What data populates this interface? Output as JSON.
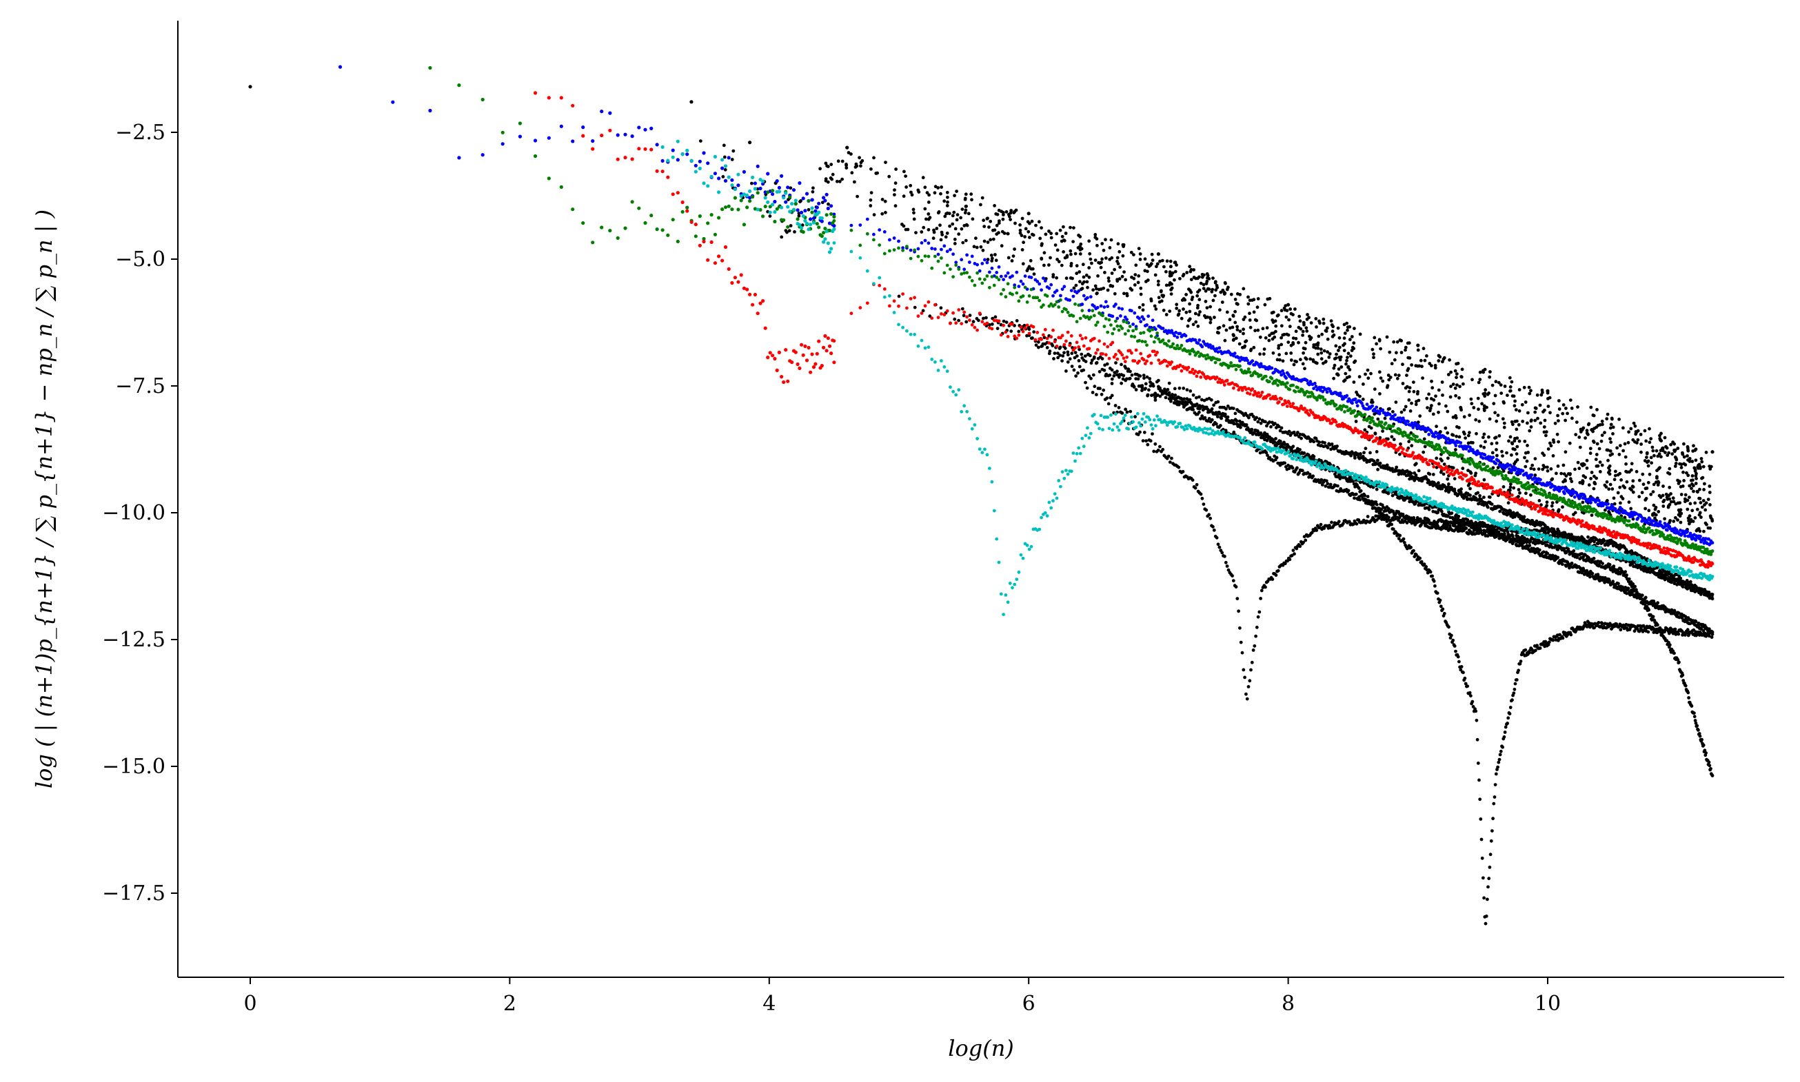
{
  "chart_data": {
    "type": "scatter",
    "title": "",
    "xlabel": "log(n)",
    "ylabel": "log ( | (n+1)p_{n+1} / ∑ p_{n+1} − np_n / ∑ p_n | )",
    "xlim": [
      -0.56,
      11.84
    ],
    "ylim": [
      -18.6,
      -0.05
    ],
    "xticks": [
      0,
      2,
      4,
      6,
      8,
      10
    ],
    "xtick_labels": [
      "0",
      "2",
      "4",
      "6",
      "8",
      "10"
    ],
    "yticks": [
      -2.5,
      -5.0,
      -7.5,
      -10.0,
      -12.5,
      -15.0,
      -17.5
    ],
    "ytick_labels": [
      "−2.5",
      "−5.0",
      "−7.5",
      "−10.0",
      "−12.5",
      "−15.0",
      "−17.5"
    ],
    "grid": false,
    "legend": "none",
    "colors": {
      "blue": "#0000ff",
      "green": "#007f00",
      "red": "#ff0000",
      "cyan": "#00bfbf",
      "black": "#000000"
    },
    "series": [
      {
        "color": "blue",
        "kind": "linear-decay",
        "x_range": [
          0.69,
          11.27
        ],
        "points": [
          [
            0.69,
            -1.1
          ],
          [
            1.1,
            -1.9
          ],
          [
            1.61,
            -2.8
          ],
          [
            1.95,
            -2.55
          ],
          [
            2.56,
            -2.35
          ],
          [
            2.83,
            -2.45
          ],
          [
            3.0,
            -2.65
          ],
          [
            3.4,
            -3.0
          ],
          [
            4.0,
            -3.6
          ],
          [
            5.0,
            -4.6
          ],
          [
            6.0,
            -5.45
          ],
          [
            7.0,
            -6.35
          ],
          [
            8.0,
            -7.3
          ],
          [
            9.0,
            -8.3
          ],
          [
            10.0,
            -9.45
          ],
          [
            11.27,
            -10.6
          ]
        ]
      },
      {
        "color": "green",
        "kind": "linear-decay",
        "x_range": [
          1.39,
          11.27
        ],
        "points": [
          [
            1.39,
            -1.05
          ],
          [
            1.79,
            -1.95
          ],
          [
            2.08,
            -2.35
          ],
          [
            2.48,
            -4.25
          ],
          [
            2.64,
            -4.95
          ],
          [
            2.94,
            -3.95
          ],
          [
            3.3,
            -4.35
          ],
          [
            3.6,
            -4.2
          ],
          [
            4.0,
            -3.9
          ],
          [
            5.0,
            -4.85
          ],
          [
            6.0,
            -5.75
          ],
          [
            7.0,
            -6.6
          ],
          [
            8.0,
            -7.5
          ],
          [
            9.0,
            -8.55
          ],
          [
            10.0,
            -9.65
          ],
          [
            11.27,
            -10.8
          ]
        ]
      },
      {
        "color": "red",
        "kind": "linear-decay",
        "x_range": [
          2.2,
          11.27
        ],
        "points": [
          [
            2.2,
            -1.75
          ],
          [
            2.4,
            -2.1
          ],
          [
            2.71,
            -2.6
          ],
          [
            3.0,
            -3.0
          ],
          [
            3.2,
            -3.2
          ],
          [
            3.5,
            -4.6
          ],
          [
            3.7,
            -5.2
          ],
          [
            3.95,
            -6.0
          ],
          [
            4.02,
            -7.2
          ],
          [
            4.5,
            -6.7
          ],
          [
            4.8,
            -5.65
          ],
          [
            5.2,
            -6.0
          ],
          [
            6.0,
            -6.45
          ],
          [
            7.0,
            -7.0
          ],
          [
            8.0,
            -7.85
          ],
          [
            9.0,
            -8.9
          ],
          [
            10.0,
            -10.0
          ],
          [
            11.27,
            -11.05
          ]
        ]
      },
      {
        "color": "cyan",
        "kind": "noisy-then-linear",
        "x_range": [
          3.18,
          11.27
        ],
        "points": [
          [
            3.18,
            -2.65
          ],
          [
            3.5,
            -3.2
          ],
          [
            4.0,
            -3.8
          ],
          [
            4.5,
            -4.6
          ],
          [
            4.8,
            -5.3
          ],
          [
            5.0,
            -6.2
          ],
          [
            5.4,
            -7.4
          ],
          [
            5.7,
            -9.0
          ],
          [
            5.8,
            -11.9
          ],
          [
            6.0,
            -10.6
          ],
          [
            6.5,
            -8.2
          ],
          [
            7.0,
            -8.2
          ],
          [
            7.5,
            -8.45
          ],
          [
            8.0,
            -8.85
          ],
          [
            9.0,
            -9.7
          ],
          [
            10.0,
            -10.5
          ],
          [
            11.27,
            -11.3
          ]
        ]
      },
      {
        "color": "black",
        "kind": "sparse-scatter-then-band",
        "x_range": [
          0.0,
          11.27
        ],
        "points": [
          [
            0.0,
            -1.6
          ],
          [
            3.4,
            -1.9
          ],
          [
            3.85,
            -2.7
          ],
          [
            4.05,
            -3.5
          ],
          [
            4.6,
            -2.8
          ],
          [
            6.0,
            -4.1
          ],
          [
            7.0,
            -4.9
          ],
          [
            8.0,
            -5.9
          ],
          [
            9.0,
            -6.7
          ],
          [
            10.0,
            -7.6
          ],
          [
            11.27,
            -8.8
          ]
        ],
        "band_lower": [
          [
            8.5,
            -9.0
          ],
          [
            9.0,
            -9.4
          ],
          [
            10.0,
            -10.0
          ],
          [
            11.27,
            -10.4
          ]
        ]
      },
      {
        "color": "black",
        "kind": "dip",
        "x_range": [
          5.0,
          11.27
        ],
        "points": [
          [
            5.0,
            -5.9
          ],
          [
            6.0,
            -6.4
          ],
          [
            6.8,
            -8.2
          ],
          [
            7.3,
            -9.5
          ],
          [
            7.6,
            -11.5
          ],
          [
            7.68,
            -13.7
          ],
          [
            7.8,
            -11.5
          ],
          [
            8.2,
            -10.3
          ],
          [
            8.7,
            -10.1
          ],
          [
            9.5,
            -10.25
          ],
          [
            10.5,
            -10.6
          ],
          [
            11.27,
            -11.65
          ]
        ]
      },
      {
        "color": "black",
        "kind": "dip",
        "x_range": [
          5.5,
          11.27
        ],
        "points": [
          [
            5.5,
            -6.0
          ],
          [
            6.5,
            -7.0
          ],
          [
            7.5,
            -8.1
          ],
          [
            8.5,
            -9.4
          ],
          [
            9.1,
            -11.2
          ],
          [
            9.45,
            -14.0
          ],
          [
            9.52,
            -18.2
          ],
          [
            9.6,
            -15.2
          ],
          [
            9.8,
            -12.8
          ],
          [
            10.3,
            -12.2
          ],
          [
            10.8,
            -12.3
          ],
          [
            11.27,
            -12.4
          ]
        ]
      },
      {
        "color": "black",
        "kind": "dip",
        "x_range": [
          6.0,
          11.27
        ],
        "points": [
          [
            6.0,
            -6.5
          ],
          [
            7.0,
            -7.6
          ],
          [
            8.0,
            -9.1
          ],
          [
            9.0,
            -10.2
          ],
          [
            10.0,
            -10.6
          ],
          [
            10.6,
            -11.2
          ],
          [
            11.0,
            -12.9
          ],
          [
            11.27,
            -15.2
          ]
        ]
      },
      {
        "color": "black",
        "kind": "linear-decay",
        "x_range": [
          6.5,
          11.27
        ],
        "points": [
          [
            6.5,
            -7.2
          ],
          [
            7.5,
            -8.1
          ],
          [
            8.5,
            -9.3
          ],
          [
            9.5,
            -10.3
          ],
          [
            10.5,
            -11.4
          ],
          [
            11.27,
            -12.35
          ]
        ]
      },
      {
        "color": "black",
        "kind": "linear-decay",
        "x_range": [
          7.0,
          11.27
        ],
        "points": [
          [
            7.0,
            -7.4
          ],
          [
            8.0,
            -8.4
          ],
          [
            9.0,
            -9.3
          ],
          [
            10.0,
            -10.3
          ],
          [
            11.27,
            -11.65
          ]
        ]
      }
    ]
  }
}
